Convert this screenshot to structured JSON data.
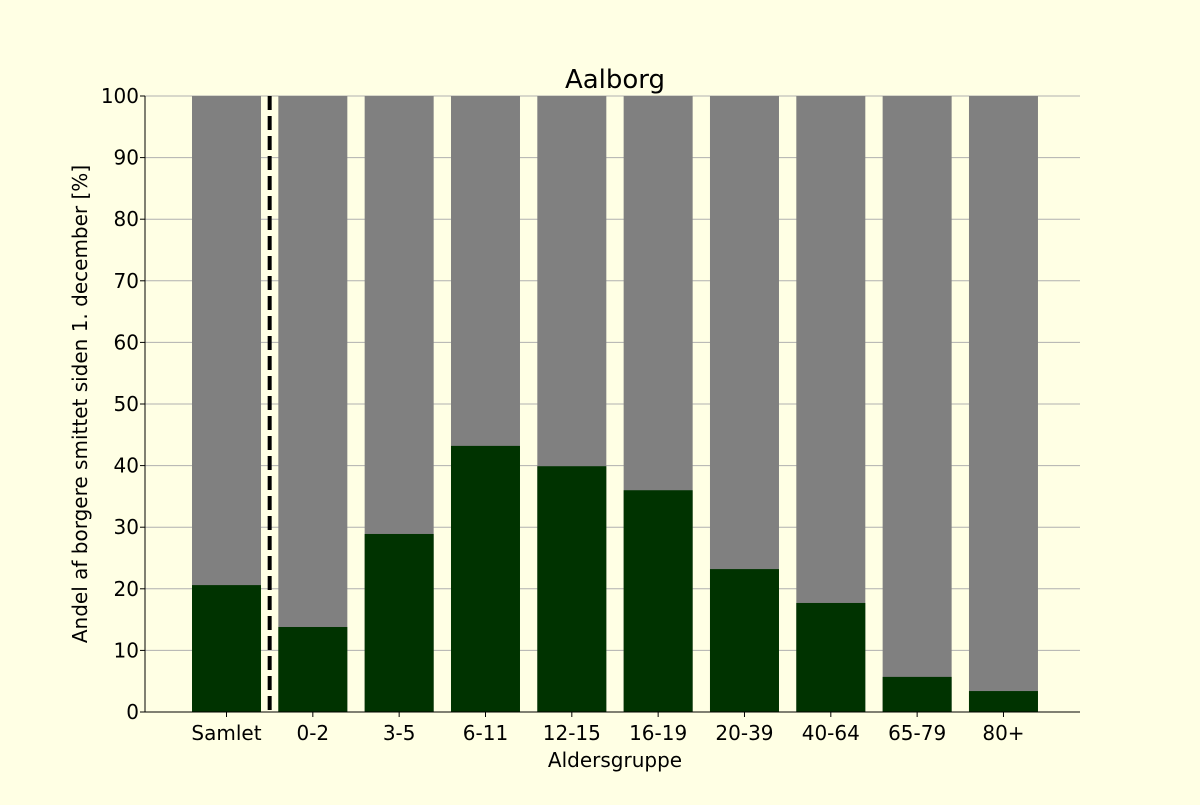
{
  "colors": {
    "background": "#ffffe4",
    "infected": "#003300",
    "total": "#808080",
    "grid": "#b0b0b0",
    "axis": "#000000"
  },
  "chart_data": {
    "type": "bar",
    "title": "Aalborg",
    "xlabel": "Aldersgruppe",
    "ylabel": "Andel af borgere smittet siden 1. december [%]",
    "categories": [
      "Samlet",
      "0-2",
      "3-5",
      "6-11",
      "12-15",
      "16-19",
      "20-39",
      "40-64",
      "65-79",
      "80+"
    ],
    "series": [
      {
        "values": [
          100,
          100,
          100,
          100,
          100,
          100,
          100,
          100,
          100,
          100
        ]
      },
      {
        "values": [
          20.6,
          13.8,
          28.9,
          43.2,
          39.9,
          36.0,
          23.2,
          17.7,
          5.7,
          3.4
        ]
      }
    ],
    "ylim": [
      0,
      100
    ],
    "yticks": [
      0,
      10,
      20,
      30,
      40,
      50,
      60,
      70,
      80,
      90,
      100
    ],
    "grid": "horizontal",
    "separator_after_category": "Samlet",
    "separator_style": "dashed"
  }
}
